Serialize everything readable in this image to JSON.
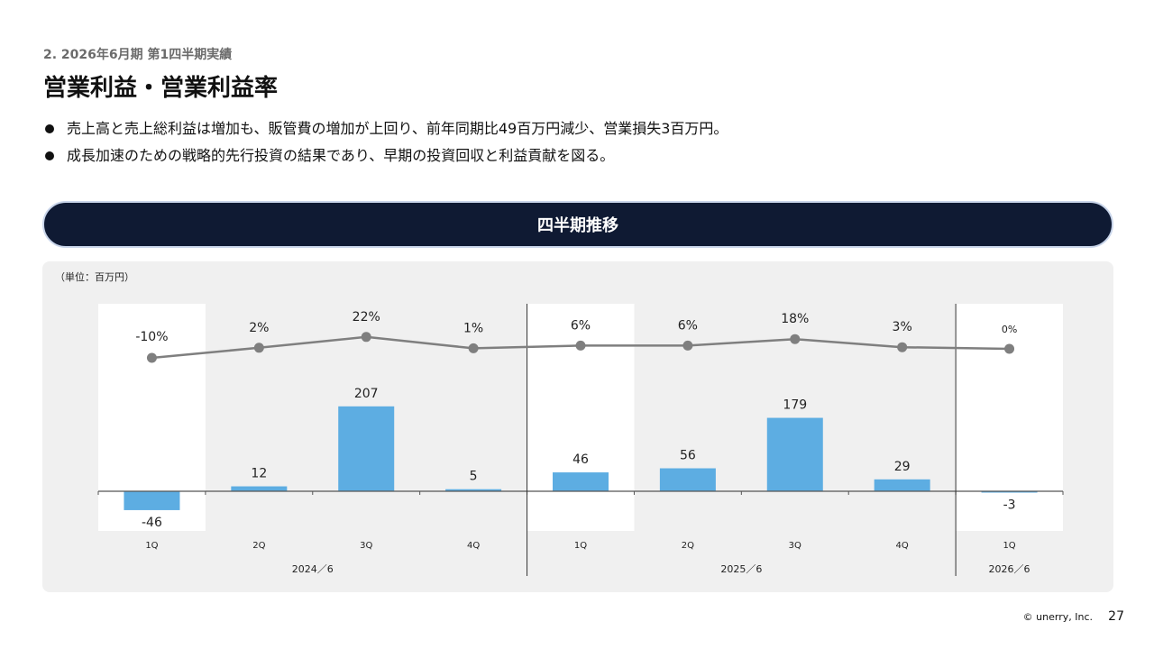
{
  "header": {
    "section": "2. 2026年6月期 第1四半期実績",
    "title": "営業利益・営業利益率"
  },
  "bullets": [
    "売上高と売上総利益は増加も、販管費の増加が上回り、前年同期比49百万円減少、営業損失3百万円。",
    "成長加速のための戦略的先行投資の結果であり、早期の投資回収と利益貢献を図る。"
  ],
  "banner": {
    "title": "四半期推移"
  },
  "chart_panel": {
    "unit": "（単位：百万円）"
  },
  "chart_data": {
    "type": "bar",
    "categories": [
      "1Q",
      "2Q",
      "3Q",
      "4Q",
      "1Q",
      "2Q",
      "3Q",
      "4Q",
      "1Q"
    ],
    "groups": [
      {
        "label": "2024／6",
        "count": 4
      },
      {
        "label": "2025／6",
        "count": 4
      },
      {
        "label": "2026／6",
        "count": 1
      }
    ],
    "series": [
      {
        "type": "bar",
        "values": [
          -46,
          12,
          207,
          5,
          46,
          56,
          179,
          29,
          -3
        ],
        "labels": [
          "-46",
          "12",
          "207",
          "5",
          "46",
          "56",
          "179",
          "29",
          "-3"
        ]
      },
      {
        "type": "line",
        "values": [
          -10,
          2,
          22,
          1,
          6,
          6,
          18,
          3,
          0
        ],
        "labels": [
          "-10%",
          "2%",
          "22%",
          "1%",
          "6%",
          "6%",
          "18%",
          "3%",
          "0%"
        ]
      }
    ],
    "highlighted_categories": [
      0,
      4,
      8
    ],
    "colors": {
      "bar": "#5dade2",
      "line": "#7f7f7f",
      "axis": "#555555",
      "highlight": "#ffffff"
    }
  },
  "footer": {
    "copyright": "© unerry, Inc.",
    "page": "27"
  }
}
